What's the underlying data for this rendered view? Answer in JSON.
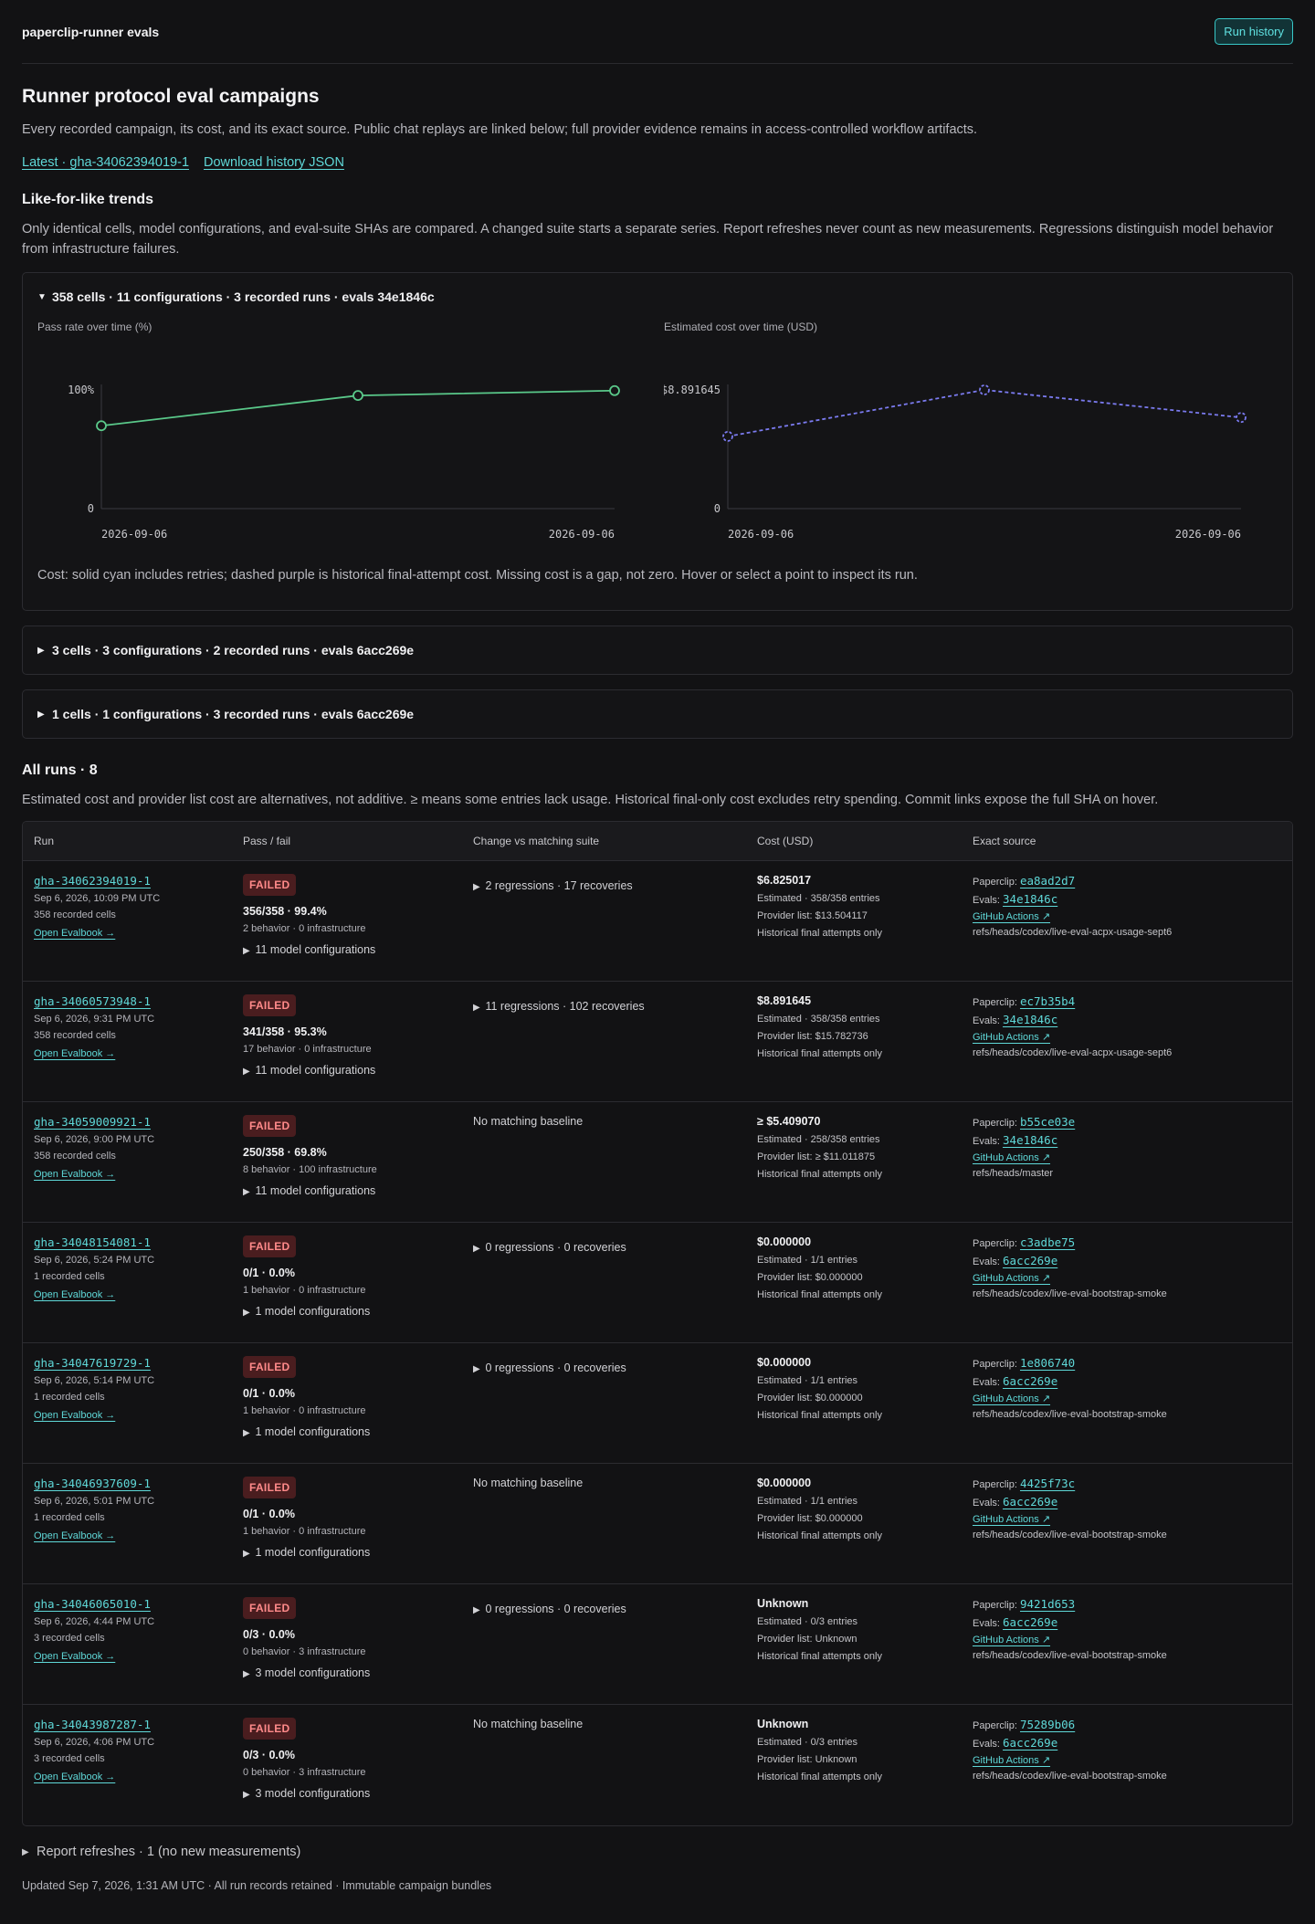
{
  "header": {
    "brand": "paperclip-runner evals",
    "run_history": "Run history"
  },
  "title": "Runner protocol eval campaigns",
  "lead": "Every recorded campaign, its cost, and its exact source. Public chat replays are linked below; full provider evidence remains in access-controlled workflow artifacts.",
  "links": {
    "latest": "Latest · gha-34062394019-1",
    "download": "Download history JSON"
  },
  "trends": {
    "heading": "Like-for-like trends",
    "description": "Only identical cells, model configurations, and eval-suite SHAs are compared. A changed suite starts a separate series. Report refreshes never count as new measurements. Regressions distinguish model behavior from infrastructure failures."
  },
  "groups": [
    {
      "summary": "358 cells · 11 configurations · 3 recorded runs · evals 34e1846c",
      "open": true
    },
    {
      "summary": "3 cells · 3 configurations · 2 recorded runs · evals 6acc269e",
      "open": false
    },
    {
      "summary": "1 cells · 1 configurations · 3 recorded runs · evals 6acc269e",
      "open": false
    }
  ],
  "chart_data": [
    {
      "type": "line",
      "title": "Pass rate over time (%)",
      "x": [
        "2026-09-06",
        "2026-09-06",
        "2026-09-06"
      ],
      "series": [
        {
          "values": [
            69.8,
            95.3,
            99.4
          ],
          "color": "#5ac98a",
          "style": "solid"
        }
      ],
      "ylim": [
        0,
        100
      ],
      "y_tick_labels": [
        "0",
        "100%"
      ],
      "x_tick_labels": [
        "2026-09-06",
        "2026-09-06"
      ],
      "grid": false
    },
    {
      "type": "line",
      "title": "Estimated cost over time (USD)",
      "x": [
        "2026-09-06",
        "2026-09-06",
        "2026-09-06"
      ],
      "series": [
        {
          "values": [
            5.40907,
            8.891645,
            6.825017
          ],
          "color": "#7b7bf0",
          "style": "dashed"
        }
      ],
      "ylim": [
        0,
        8.891645
      ],
      "y_tick_labels": [
        "0",
        "$8.891645"
      ],
      "x_tick_labels": [
        "2026-09-06",
        "2026-09-06"
      ],
      "grid": false
    }
  ],
  "cost_note": "Cost: solid cyan includes retries; dashed purple is historical final-attempt cost. Missing cost is a gap, not zero. Hover or select a point to inspect its run.",
  "all_runs": {
    "heading": "All runs · 8",
    "description": "Estimated cost and provider list cost are alternatives, not additive. ≥ means some entries lack usage. Historical final-only cost excludes retry spending. Commit links expose the full SHA on hover.",
    "columns": [
      "Run",
      "Pass / fail",
      "Change vs matching suite",
      "Cost (USD)",
      "Exact source"
    ],
    "rows": [
      {
        "id": "gha-34062394019-1",
        "date": "Sep 6, 2026, 10:09 PM UTC",
        "cells": "358 recorded cells",
        "evalbook": "Open Evalbook →",
        "status": "FAILED",
        "passfail": "356/358 · 99.4%",
        "breakdown": "2 behavior · 0 infrastructure",
        "configs": "11 model configurations",
        "change": "2 regressions · 17 recoveries",
        "change_expandable": true,
        "cost": "$6.825017",
        "estimated": "Estimated · 358/358 entries",
        "provider": "Provider list: $13.504117",
        "historical": "Historical final attempts only",
        "paperclip_label": "Paperclip:",
        "paperclip": "ea8ad2d7",
        "evals_label": "Evals:",
        "evals": "34e1846c",
        "gh": "GitHub Actions ↗",
        "ref": "refs/heads/codex/live-eval-acpx-usage-sept6"
      },
      {
        "id": "gha-34060573948-1",
        "date": "Sep 6, 2026, 9:31 PM UTC",
        "cells": "358 recorded cells",
        "evalbook": "Open Evalbook →",
        "status": "FAILED",
        "passfail": "341/358 · 95.3%",
        "breakdown": "17 behavior · 0 infrastructure",
        "configs": "11 model configurations",
        "change": "11 regressions · 102 recoveries",
        "change_expandable": true,
        "cost": "$8.891645",
        "estimated": "Estimated · 358/358 entries",
        "provider": "Provider list: $15.782736",
        "historical": "Historical final attempts only",
        "paperclip_label": "Paperclip:",
        "paperclip": "ec7b35b4",
        "evals_label": "Evals:",
        "evals": "34e1846c",
        "gh": "GitHub Actions ↗",
        "ref": "refs/heads/codex/live-eval-acpx-usage-sept6"
      },
      {
        "id": "gha-34059009921-1",
        "date": "Sep 6, 2026, 9:00 PM UTC",
        "cells": "358 recorded cells",
        "evalbook": "Open Evalbook →",
        "status": "FAILED",
        "passfail": "250/358 · 69.8%",
        "breakdown": "8 behavior · 100 infrastructure",
        "configs": "11 model configurations",
        "change": "No matching baseline",
        "change_expandable": false,
        "cost": "≥ $5.409070",
        "estimated": "Estimated · 258/358 entries",
        "provider": "Provider list: ≥ $11.011875",
        "historical": "Historical final attempts only",
        "paperclip_label": "Paperclip:",
        "paperclip": "b55ce03e",
        "evals_label": "Evals:",
        "evals": "34e1846c",
        "gh": "GitHub Actions ↗",
        "ref": "refs/heads/master"
      },
      {
        "id": "gha-34048154081-1",
        "date": "Sep 6, 2026, 5:24 PM UTC",
        "cells": "1 recorded cells",
        "evalbook": "Open Evalbook →",
        "status": "FAILED",
        "passfail": "0/1 · 0.0%",
        "breakdown": "1 behavior · 0 infrastructure",
        "configs": "1 model configurations",
        "change": "0 regressions · 0 recoveries",
        "change_expandable": true,
        "cost": "$0.000000",
        "estimated": "Estimated · 1/1 entries",
        "provider": "Provider list: $0.000000",
        "historical": "Historical final attempts only",
        "paperclip_label": "Paperclip:",
        "paperclip": "c3adbe75",
        "evals_label": "Evals:",
        "evals": "6acc269e",
        "gh": "GitHub Actions ↗",
        "ref": "refs/heads/codex/live-eval-bootstrap-smoke"
      },
      {
        "id": "gha-34047619729-1",
        "date": "Sep 6, 2026, 5:14 PM UTC",
        "cells": "1 recorded cells",
        "evalbook": "Open Evalbook →",
        "status": "FAILED",
        "passfail": "0/1 · 0.0%",
        "breakdown": "1 behavior · 0 infrastructure",
        "configs": "1 model configurations",
        "change": "0 regressions · 0 recoveries",
        "change_expandable": true,
        "cost": "$0.000000",
        "estimated": "Estimated · 1/1 entries",
        "provider": "Provider list: $0.000000",
        "historical": "Historical final attempts only",
        "paperclip_label": "Paperclip:",
        "paperclip": "1e806740",
        "evals_label": "Evals:",
        "evals": "6acc269e",
        "gh": "GitHub Actions ↗",
        "ref": "refs/heads/codex/live-eval-bootstrap-smoke"
      },
      {
        "id": "gha-34046937609-1",
        "date": "Sep 6, 2026, 5:01 PM UTC",
        "cells": "1 recorded cells",
        "evalbook": "Open Evalbook →",
        "status": "FAILED",
        "passfail": "0/1 · 0.0%",
        "breakdown": "1 behavior · 0 infrastructure",
        "configs": "1 model configurations",
        "change": "No matching baseline",
        "change_expandable": false,
        "cost": "$0.000000",
        "estimated": "Estimated · 1/1 entries",
        "provider": "Provider list: $0.000000",
        "historical": "Historical final attempts only",
        "paperclip_label": "Paperclip:",
        "paperclip": "4425f73c",
        "evals_label": "Evals:",
        "evals": "6acc269e",
        "gh": "GitHub Actions ↗",
        "ref": "refs/heads/codex/live-eval-bootstrap-smoke"
      },
      {
        "id": "gha-34046065010-1",
        "date": "Sep 6, 2026, 4:44 PM UTC",
        "cells": "3 recorded cells",
        "evalbook": "Open Evalbook →",
        "status": "FAILED",
        "passfail": "0/3 · 0.0%",
        "breakdown": "0 behavior · 3 infrastructure",
        "configs": "3 model configurations",
        "change": "0 regressions · 0 recoveries",
        "change_expandable": true,
        "cost": "Unknown",
        "estimated": "Estimated · 0/3 entries",
        "provider": "Provider list: Unknown",
        "historical": "Historical final attempts only",
        "paperclip_label": "Paperclip:",
        "paperclip": "9421d653",
        "evals_label": "Evals:",
        "evals": "6acc269e",
        "gh": "GitHub Actions ↗",
        "ref": "refs/heads/codex/live-eval-bootstrap-smoke"
      },
      {
        "id": "gha-34043987287-1",
        "date": "Sep 6, 2026, 4:06 PM UTC",
        "cells": "3 recorded cells",
        "evalbook": "Open Evalbook →",
        "status": "FAILED",
        "passfail": "0/3 · 0.0%",
        "breakdown": "0 behavior · 3 infrastructure",
        "configs": "3 model configurations",
        "change": "No matching baseline",
        "change_expandable": false,
        "cost": "Unknown",
        "estimated": "Estimated · 0/3 entries",
        "provider": "Provider list: Unknown",
        "historical": "Historical final attempts only",
        "paperclip_label": "Paperclip:",
        "paperclip": "75289b06",
        "evals_label": "Evals:",
        "evals": "6acc269e",
        "gh": "GitHub Actions ↗",
        "ref": "refs/heads/codex/live-eval-bootstrap-smoke"
      }
    ]
  },
  "refreshes": "Report refreshes · 1 (no new measurements)",
  "footer": "Updated Sep 7, 2026, 1:31 AM UTC · All run records retained · Immutable campaign bundles",
  "icons": {
    "expanded": "triangle-down-icon",
    "collapsed": "triangle-right-icon"
  }
}
